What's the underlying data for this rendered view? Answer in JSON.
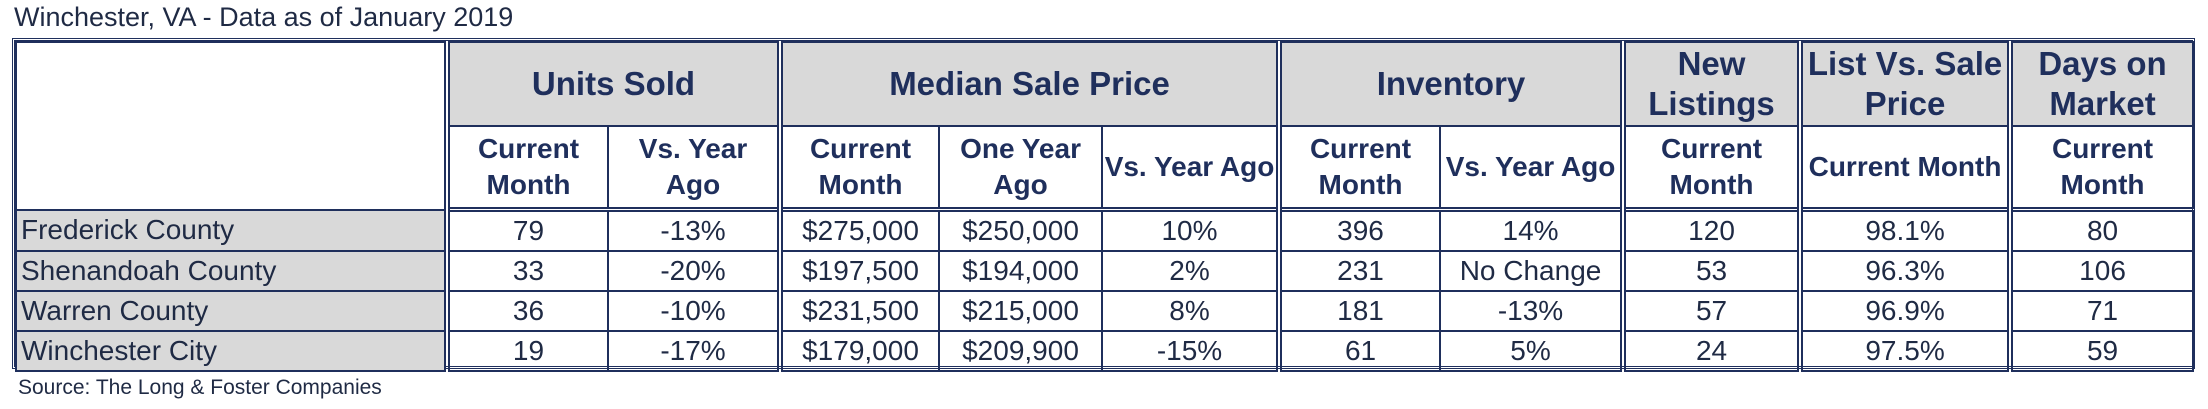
{
  "title": "Winchester, VA - Data as of January 2019",
  "source": "Source: The Long & Foster Companies",
  "groups": {
    "units_sold": "Units Sold",
    "median_sale_price": "Median Sale Price",
    "inventory": "Inventory",
    "new_listings": "New Listings",
    "list_vs_sale": "List Vs. Sale Price",
    "days_on_market": "Days on Market"
  },
  "subheaders": {
    "units_current": "Current Month",
    "units_vs": "Vs. Year Ago",
    "price_current": "Current Month",
    "price_one_year": "One Year Ago",
    "price_vs": "Vs. Year Ago",
    "inv_current": "Current Month",
    "inv_vs": "Vs. Year Ago",
    "new_current": "Current Month",
    "list_current": "Current Month",
    "days_current": "Current Month"
  },
  "rows": [
    {
      "name": "Frederick County",
      "units": "79",
      "units_vs": "-13%",
      "price": "$275,000",
      "price_prev": "$250,000",
      "price_vs": "10%",
      "inv": "396",
      "inv_vs": "14%",
      "new": "120",
      "list_vs_sale": "98.1%",
      "dom": "80"
    },
    {
      "name": "Shenandoah County",
      "units": "33",
      "units_vs": "-20%",
      "price": "$197,500",
      "price_prev": "$194,000",
      "price_vs": "2%",
      "inv": "231",
      "inv_vs": "No Change",
      "new": "53",
      "list_vs_sale": "96.3%",
      "dom": "106"
    },
    {
      "name": "Warren County",
      "units": "36",
      "units_vs": "-10%",
      "price": "$231,500",
      "price_prev": "$215,000",
      "price_vs": "8%",
      "inv": "181",
      "inv_vs": "-13%",
      "new": "57",
      "list_vs_sale": "96.9%",
      "dom": "71"
    },
    {
      "name": "Winchester City",
      "units": "19",
      "units_vs": "-17%",
      "price": "$179,000",
      "price_prev": "$209,900",
      "price_vs": "-15%",
      "inv": "61",
      "inv_vs": "5%",
      "new": "24",
      "list_vs_sale": "97.5%",
      "dom": "59"
    }
  ]
}
